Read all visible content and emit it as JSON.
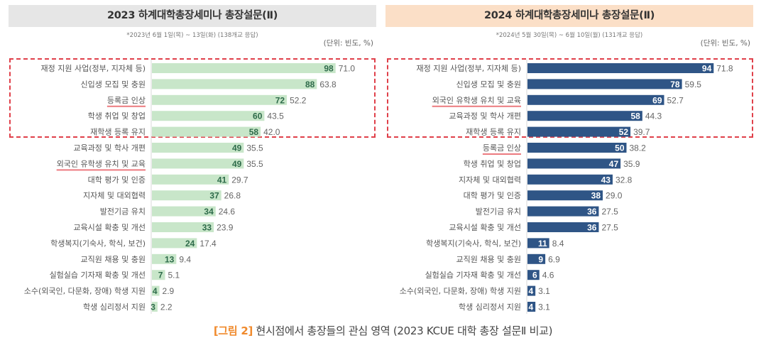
{
  "chart_data": [
    {
      "type": "bar",
      "orientation": "horizontal",
      "title": "2023 하계대학총장세미나 총장설문(Ⅱ)",
      "subtitle": "*2023년 6월 1일(목) ~ 13일(화) (138개교 응답)",
      "unit_label": "(단위: 빈도, %)",
      "bar_color": "#c8e6c9",
      "count_label_color": "#2e6b4a",
      "highlight_box_top_n": 5,
      "underlined_categories": [
        "등록금 인상",
        "외국인 유학생 유치 및 교육"
      ],
      "categories": [
        "재정 지원 사업(정부, 지자체 등)",
        "신입생 모집 및 충원",
        "등록금 인상",
        "학생 취업 및 창업",
        "재학생 등록 유지",
        "교육과정 및 학사 개편",
        "외국인 유학생 유치 및 교육",
        "대학 평가 및 인증",
        "지자체 및 대외협력",
        "발전기금 유치",
        "교육시설 확충 및 개선",
        "학생복지(기숙사, 학식, 보건)",
        "교직원 채용 및 충원",
        "실험실습 기자재 확충 및 개선",
        "소수(외국인, 다문화, 장애) 학생 지원",
        "학생 심리정서 지원"
      ],
      "series": [
        {
          "name": "빈도",
          "values": [
            98,
            88,
            72,
            60,
            58,
            49,
            49,
            41,
            37,
            34,
            33,
            24,
            13,
            7,
            4,
            3
          ]
        },
        {
          "name": "%",
          "values": [
            "71.0",
            "63.8",
            "52.2",
            "43.5",
            "42.0",
            "35.5",
            "35.5",
            "29.7",
            "26.8",
            "24.6",
            "23.9",
            "17.4",
            "9.4",
            "5.1",
            "2.9",
            "2.2"
          ]
        }
      ],
      "xlim": [
        0,
        100
      ],
      "grid": false
    },
    {
      "type": "bar",
      "orientation": "horizontal",
      "title": "2024 하계대학총장세미나 총장설문(Ⅱ)",
      "subtitle": "*2024년 5월 30일(목) ~ 6월 10일(월) (131개교 응답)",
      "unit_label": "(단위: 빈도, %)",
      "bar_color": "#2f5586",
      "count_label_color": "#ffffff",
      "highlight_box_top_n": 5,
      "underlined_categories": [
        "외국인 유학생 유치 및 교육",
        "등록금 인상"
      ],
      "categories": [
        "재정 지원 사업(정부, 지자체 등)",
        "신입생 모집 및 충원",
        "외국인 유학생 유치 및 교육",
        "교육과정 및 학사 개편",
        "재학생 등록 유지",
        "등록금 인상",
        "학생 취업 및 창업",
        "지자체 및 대외협력",
        "대학 평가 및 인증",
        "발전기금 유치",
        "교육시설 확충 및 개선",
        "학생복지(기숙사, 학식, 보건)",
        "교직원 채용 및 충원",
        "실험실습 기자재 확충 및 개선",
        "소수(외국인, 다문화, 장애) 학생 지원",
        "학생 심리정서 지원"
      ],
      "series": [
        {
          "name": "빈도",
          "values": [
            94,
            78,
            69,
            58,
            52,
            50,
            47,
            43,
            38,
            36,
            36,
            11,
            9,
            6,
            4,
            4
          ]
        },
        {
          "name": "%",
          "values": [
            "71.8",
            "59.5",
            "52.7",
            "44.3",
            "39.7",
            "38.2",
            "35.9",
            "32.8",
            "29.0",
            "27.5",
            "27.5",
            "8.4",
            "6.9",
            "4.6",
            "3.1",
            "3.1"
          ]
        }
      ],
      "xlim": [
        0,
        100
      ],
      "grid": false
    }
  ],
  "caption": {
    "figure_label": "[그림 2]",
    "text": " 현시점에서 총장들의 관심 영역 (2023 KCUE 대학 총장 설문Ⅱ 비교)"
  },
  "colors": {
    "highlight_box": "#e0404a",
    "underline": "#ec7a7f",
    "caption_accent": "#f08a2c"
  }
}
